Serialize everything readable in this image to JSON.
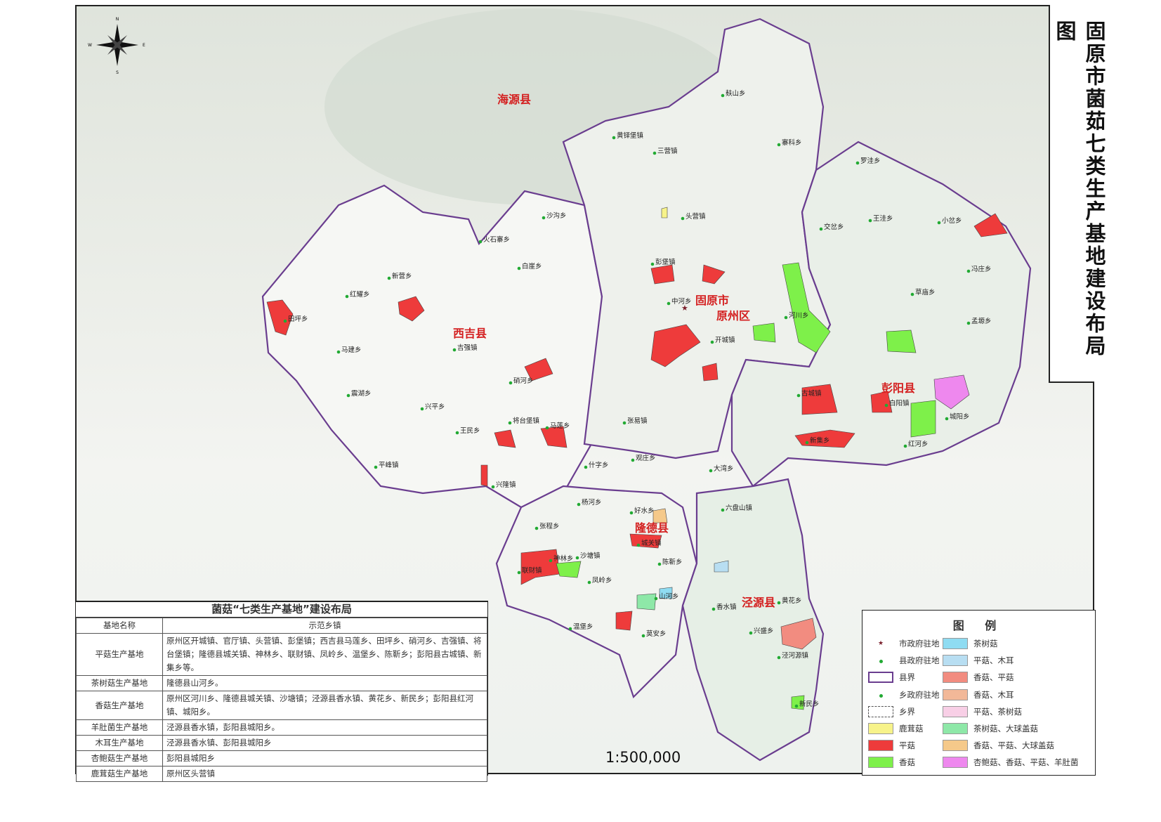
{
  "title": "固原市菌茹七类生产基地建设布局图",
  "scale": "1:500,000",
  "compass": {
    "n": "N",
    "s": "S",
    "e": "E",
    "w": "W"
  },
  "counties": [
    "海源县",
    "西吉县",
    "固原市",
    "原州区",
    "彭阳县",
    "隆德县",
    "泾源县"
  ],
  "towns": [
    "麸山乡",
    "寨科乡",
    "黄铎堡镇",
    "三营镇",
    "罗洼乡",
    "头营镇",
    "交岔乡",
    "王洼乡",
    "小岔乡",
    "沙沟乡",
    "火石寨乡",
    "白崖乡",
    "新营乡",
    "红耀乡",
    "彭堡镇",
    "冯庄乡",
    "草庙乡",
    "田坪乡",
    "中河乡",
    "河川乡",
    "孟塬乡",
    "马建乡",
    "吉强镇",
    "开城镇",
    "硝河乡",
    "震湖乡",
    "古城镇",
    "白阳镇",
    "兴平乡",
    "城阳乡",
    "张易镇",
    "将台堡镇",
    "马莲乡",
    "王民乡",
    "新集乡",
    "红河乡",
    "什字乡",
    "观庄乡",
    "平峰镇",
    "大湾乡",
    "兴隆镇",
    "杨河乡",
    "好水乡",
    "六盘山镇",
    "张程乡",
    "城关镇",
    "神林乡",
    "沙塘镇",
    "陈靳乡",
    "联财镇",
    "凤岭乡",
    "山河乡",
    "香水镇",
    "黄花乡",
    "温堡乡",
    "兴盛乡",
    "莫安乡",
    "泾河源镇",
    "新民乡"
  ],
  "table": {
    "title": "菌菇“七类生产基地”建设布局",
    "headers": [
      "基地名称",
      "示范乡镇"
    ],
    "rows": [
      {
        "name": "平菇生产基地",
        "towns": "原州区开城镇、官厅镇、头营镇、彭堡镇；西吉县马莲乡、田坪乡、硝河乡、吉强镇、将台堡镇；隆德县城关镇、神林乡、联财镇、凤岭乡、温堡乡、陈靳乡；彭阳县古城镇、新集乡等。"
      },
      {
        "name": "茶树菇生产基地",
        "towns": "隆德县山河乡。"
      },
      {
        "name": "香菇生产基地",
        "towns": "原州区河川乡、隆德县城关镇、沙塘镇；泾源县香水镇、黄花乡、新民乡；彭阳县红河镇、城阳乡。"
      },
      {
        "name": "羊肚菌生产基地",
        "towns": "泾源县香水镇，彭阳县城阳乡。"
      },
      {
        "name": "木耳生产基地",
        "towns": "泾源县香水镇、彭阳县城阳乡"
      },
      {
        "name": "杏鲍菇生产基地",
        "towns": "彭阳县城阳乡"
      },
      {
        "name": "鹿茸菇生产基地",
        "towns": "原州区头营镇"
      }
    ]
  },
  "legend": {
    "title": "图 例",
    "symbols": [
      {
        "label": "市政府驻地",
        "type": "star",
        "color": "#7a1f2b"
      },
      {
        "label": "县政府驻地",
        "type": "dot",
        "color": "#22aa33"
      },
      {
        "label": "县界",
        "type": "box-solid",
        "color": "#6a3d8f"
      },
      {
        "label": "乡政府驻地",
        "type": "dot",
        "color": "#22aa33"
      },
      {
        "label": "乡界",
        "type": "box-dashed",
        "color": "#555555"
      },
      {
        "label": "鹿茸菇",
        "type": "fill",
        "color": "#f7f38a"
      },
      {
        "label": "平菇",
        "type": "fill",
        "color": "#ee3b3b"
      },
      {
        "label": "香菇",
        "type": "fill",
        "color": "#7ef04a"
      }
    ],
    "fills": [
      {
        "label": "茶树菇",
        "color": "#8fdcf2"
      },
      {
        "label": "平菇、木耳",
        "color": "#b8def2"
      },
      {
        "label": "香菇、平菇",
        "color": "#f28c80"
      },
      {
        "label": "香菇、木耳",
        "color": "#f2b898"
      },
      {
        "label": "平菇、茶树菇",
        "color": "#f8cfe6"
      },
      {
        "label": "茶树菇、大球盖菇",
        "color": "#8ee8a8"
      },
      {
        "label": "香菇、平菇、大球盖菇",
        "color": "#f5c98a"
      },
      {
        "label": "杏鲍菇、香菇、平菇、羊肚菌",
        "color": "#ee88ee"
      }
    ]
  }
}
